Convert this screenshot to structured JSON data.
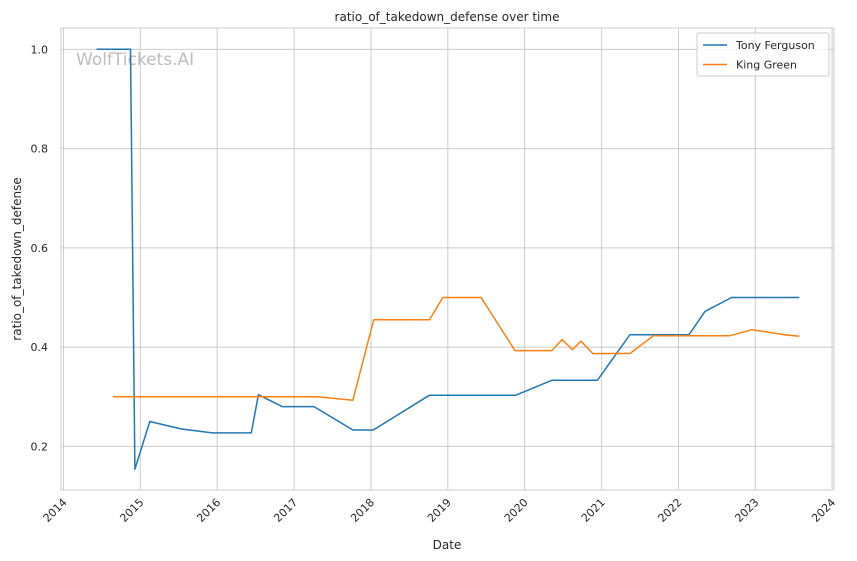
{
  "chart_data": {
    "type": "line",
    "title": "ratio_of_takedown_defense over time",
    "xlabel": "Date",
    "ylabel": "ratio_of_takedown_defense",
    "watermark": "WolfTickets.AI",
    "xlim": [
      "2013-12-20",
      "2024-01-10"
    ],
    "ylim": [
      0.112,
      1.043
    ],
    "x_ticks": [
      "2014",
      "2015",
      "2016",
      "2017",
      "2018",
      "2019",
      "2020",
      "2021",
      "2022",
      "2023",
      "2024"
    ],
    "y_ticks": [
      "0.2",
      "0.4",
      "0.6",
      "0.8",
      "1.0"
    ],
    "grid": true,
    "legend": "top-right",
    "series": [
      {
        "name": "Tony Ferguson",
        "color": "#1f77b4",
        "x": [
          "2014-06-07",
          "2014-11-15",
          "2014-12-06",
          "2015-02-15",
          "2015-07-15",
          "2015-12-10",
          "2016-06-11",
          "2016-07-15",
          "2016-11-05",
          "2017-04-05",
          "2017-10-07",
          "2018-01-12",
          "2018-10-06",
          "2019-11-20",
          "2020-05-09",
          "2020-12-12",
          "2021-05-15",
          "2022-02-20",
          "2022-05-07",
          "2022-09-10",
          "2023-07-29"
        ],
        "values": [
          1.0,
          1.0,
          0.154,
          0.25,
          0.235,
          0.227,
          0.227,
          0.304,
          0.28,
          0.28,
          0.233,
          0.233,
          0.303,
          0.303,
          0.333,
          0.333,
          0.425,
          0.425,
          0.472,
          0.5,
          0.5
        ]
      },
      {
        "name": "King Green",
        "color": "#ff7f0e",
        "x": [
          "2014-08-23",
          "2017-04-20",
          "2017-10-07",
          "2018-01-14",
          "2018-10-06",
          "2018-12-08",
          "2019-06-08",
          "2019-11-16",
          "2020-05-09",
          "2020-06-27",
          "2020-08-15",
          "2020-09-25",
          "2020-11-20",
          "2021-05-15",
          "2021-09-04",
          "2022-09-01",
          "2022-12-17",
          "2023-05-20",
          "2023-07-29"
        ],
        "values": [
          0.3,
          0.3,
          0.293,
          0.455,
          0.455,
          0.5,
          0.5,
          0.393,
          0.393,
          0.415,
          0.395,
          0.412,
          0.387,
          0.387,
          0.423,
          0.423,
          0.435,
          0.425,
          0.422
        ]
      }
    ]
  }
}
